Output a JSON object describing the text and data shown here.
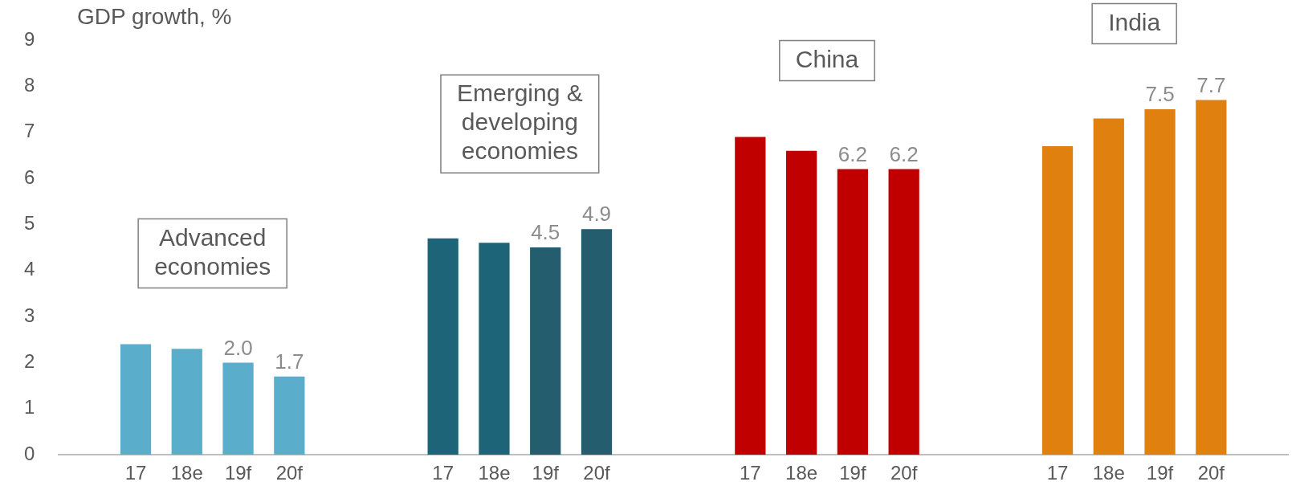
{
  "chart_data": {
    "type": "bar",
    "ylabel": "GDP growth, %",
    "categories": [
      null,
      "17",
      "18e",
      "19f",
      "20f",
      null,
      null,
      "17",
      "18e",
      "19f",
      "20f",
      null,
      null,
      "17",
      "18e",
      "19f",
      "20f",
      null,
      null,
      "17",
      "18e",
      "19f",
      "20f",
      null
    ],
    "values": [
      null,
      2.4,
      2.3,
      2.0,
      1.7,
      null,
      null,
      4.7,
      4.6,
      4.5,
      4.9,
      null,
      null,
      6.9,
      6.6,
      6.2,
      6.2,
      null,
      null,
      6.7,
      7.3,
      7.5,
      7.7,
      null
    ],
    "value_labels": [
      null,
      null,
      null,
      "2.0",
      "1.7",
      null,
      null,
      null,
      null,
      "4.5",
      "4.9",
      null,
      null,
      null,
      null,
      "6.2",
      "6.2",
      null,
      null,
      null,
      null,
      "7.5",
      "7.7",
      null
    ],
    "colors": [
      "#5aaecb",
      "#5aaecb",
      "#5aaecb",
      "#5aaecb",
      "#5aaecb",
      "#5aaecb",
      "#1e6478",
      "#1e6478",
      "#1e6478",
      "#245d6e",
      "#245d6e",
      "#245d6e",
      "#c00000",
      "#c00000",
      "#c00000",
      "#c00000",
      "#c00000",
      "#c00000",
      "#e0800f",
      "#e0800f",
      "#e0800f",
      "#e0800f",
      "#e0800f",
      "#e0800f"
    ],
    "annotations": [
      "Advanced economies",
      "Emerging & developing economies",
      "China",
      "India"
    ],
    "ylim": [
      0,
      9
    ],
    "yticks": [
      0,
      1,
      2,
      3,
      4,
      5,
      6,
      7,
      8,
      9
    ],
    "grid": false,
    "legend": false
  }
}
